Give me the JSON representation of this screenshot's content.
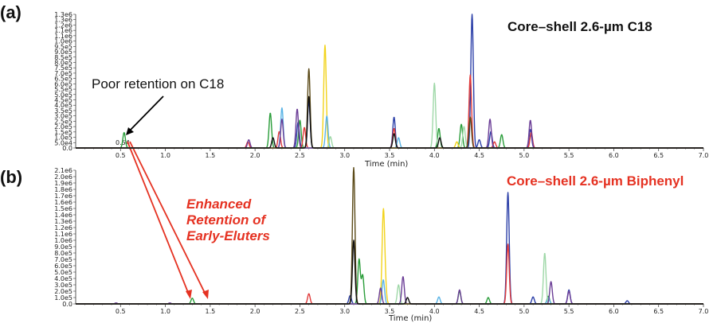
{
  "chart_data": [
    {
      "panel_label": "(a)",
      "type": "line",
      "title": "Core–shell 2.6-µm C18",
      "xlabel": "Time (min)",
      "xlim": [
        0.0,
        7.0
      ],
      "ylim": [
        0,
        1300000
      ],
      "x_ticks": [
        "0.5",
        "1.0",
        "1.5",
        "2.0",
        "2.5",
        "3.0",
        "3.5",
        "4.0",
        "4.5",
        "5.0",
        "5.5",
        "6.0",
        "6.5",
        "7.0"
      ],
      "y_ticks": [
        "0.0",
        "5.0e4",
        "1.0e5",
        "1.5e5",
        "2.0e5",
        "2.5e5",
        "3.0e5",
        "3.5e5",
        "4.0e5",
        "4.5e5",
        "5.0e5",
        "5.5e5",
        "6.0e5",
        "6.5e5",
        "7.0e5",
        "7.5e5",
        "8.0e5",
        "8.5e5",
        "9.0e5",
        "9.5e5",
        "1.0e6",
        "1.1e6",
        "1.1e6",
        "1.2e6",
        "1.3e6",
        "1.3e6"
      ],
      "annotation": "Poor retention on C18",
      "peak_label": "0.54",
      "title_color": "#111111",
      "series": [
        {
          "color": "#2a9d3a",
          "peaks": [
            [
              0.54,
              150000
            ],
            [
              2.17,
              340000
            ],
            [
              2.5,
              270000
            ],
            [
              4.05,
              190000
            ],
            [
              4.3,
              230000
            ],
            [
              4.75,
              130000
            ]
          ]
        },
        {
          "color": "#2b3fa8",
          "peaks": [
            [
              2.48,
              250000
            ],
            [
              2.6,
              460000
            ],
            [
              3.55,
              300000
            ],
            [
              4.42,
              1300000
            ],
            [
              4.5,
              80000
            ],
            [
              4.63,
              160000
            ],
            [
              5.07,
              180000
            ]
          ]
        },
        {
          "color": "#e03a3a",
          "peaks": [
            [
              1.92,
              60000
            ],
            [
              2.27,
              160000
            ],
            [
              2.55,
              200000
            ],
            [
              3.55,
              190000
            ],
            [
              4.4,
              710000
            ],
            [
              4.67,
              60000
            ],
            [
              5.08,
              150000
            ]
          ]
        },
        {
          "color": "#f2d31b",
          "peaks": [
            [
              2.78,
              1000000
            ],
            [
              4.25,
              60000
            ]
          ]
        },
        {
          "color": "#5ab4e6",
          "peaks": [
            [
              2.3,
              390000
            ],
            [
              2.8,
              310000
            ],
            [
              3.6,
              100000
            ]
          ]
        },
        {
          "color": "#9fd8a8",
          "peaks": [
            [
              2.84,
              110000
            ],
            [
              4.0,
              630000
            ],
            [
              4.33,
              210000
            ]
          ]
        },
        {
          "color": "#6b3d96",
          "peaks": [
            [
              1.93,
              80000
            ],
            [
              2.3,
              280000
            ],
            [
              2.47,
              380000
            ],
            [
              4.62,
              280000
            ],
            [
              5.07,
              270000
            ]
          ]
        },
        {
          "color": "#5b4a18",
          "peaks": [
            [
              2.6,
              770000
            ],
            [
              4.4,
              300000
            ]
          ]
        },
        {
          "color": "#111111",
          "peaks": [
            [
              2.2,
              100000
            ],
            [
              2.6,
              500000
            ],
            [
              3.55,
              140000
            ],
            [
              4.06,
              100000
            ]
          ]
        }
      ]
    },
    {
      "panel_label": "(b)",
      "type": "line",
      "title": "Core–shell 2.6-µm Biphenyl",
      "xlabel": "Time (min)",
      "xlim": [
        0.0,
        7.0
      ],
      "ylim": [
        0,
        2100000
      ],
      "x_ticks": [
        "0.5",
        "1.0",
        "1.5",
        "2.0",
        "2.5",
        "3.0",
        "3.5",
        "4.0",
        "4.5",
        "5.0",
        "5.5",
        "6.0",
        "6.5",
        "7.0"
      ],
      "y_ticks": [
        "0.0",
        "1.0e5",
        "2.0e5",
        "3.0e5",
        "4.0e5",
        "5.0e5",
        "6.0e5",
        "7.0e5",
        "8.0e5",
        "9.0e5",
        "1.0e6",
        "1.1e6",
        "1.2e6",
        "1.3e6",
        "1.4e6",
        "1.5e6",
        "1.6e6",
        "1.7e6",
        "1.8e6",
        "1.9e6",
        "2.0e6",
        "2.1e6"
      ],
      "annotation_lines": [
        "Enhanced",
        "Retention of",
        "Early-Eluters"
      ],
      "title_color": "#e53222",
      "series": [
        {
          "color": "#2a9d3a",
          "peaks": [
            [
              1.3,
              90000
            ],
            [
              3.16,
              700000
            ],
            [
              3.2,
              450000
            ],
            [
              4.28,
              200000
            ],
            [
              4.6,
              100000
            ],
            [
              5.27,
              120000
            ]
          ]
        },
        {
          "color": "#2b3fa8",
          "peaks": [
            [
              3.06,
              130000
            ],
            [
              4.82,
              1750000
            ],
            [
              5.1,
              110000
            ],
            [
              5.5,
              220000
            ],
            [
              6.15,
              50000
            ]
          ]
        },
        {
          "color": "#e03a3a",
          "peaks": [
            [
              2.6,
              160000
            ],
            [
              4.82,
              940000
            ]
          ]
        },
        {
          "color": "#f2d31b",
          "peaks": [
            [
              3.43,
              1380000
            ],
            [
              3.45,
              300000
            ]
          ]
        },
        {
          "color": "#5ab4e6",
          "peaks": [
            [
              3.43,
              380000
            ],
            [
              4.05,
              110000
            ],
            [
              5.27,
              100000
            ]
          ]
        },
        {
          "color": "#9fd8a8",
          "peaks": [
            [
              3.6,
              300000
            ],
            [
              5.23,
              800000
            ]
          ]
        },
        {
          "color": "#6b3d96",
          "peaks": [
            [
              3.4,
              250000
            ],
            [
              3.65,
              430000
            ],
            [
              4.28,
              220000
            ],
            [
              5.3,
              350000
            ],
            [
              5.5,
              200000
            ],
            [
              0.45,
              15000
            ],
            [
              1.05,
              15000
            ]
          ]
        },
        {
          "color": "#5b4a18",
          "peaks": [
            [
              3.1,
              2150000
            ]
          ]
        },
        {
          "color": "#111111",
          "peaks": [
            [
              3.1,
              1000000
            ],
            [
              3.7,
              100000
            ]
          ]
        }
      ]
    }
  ]
}
